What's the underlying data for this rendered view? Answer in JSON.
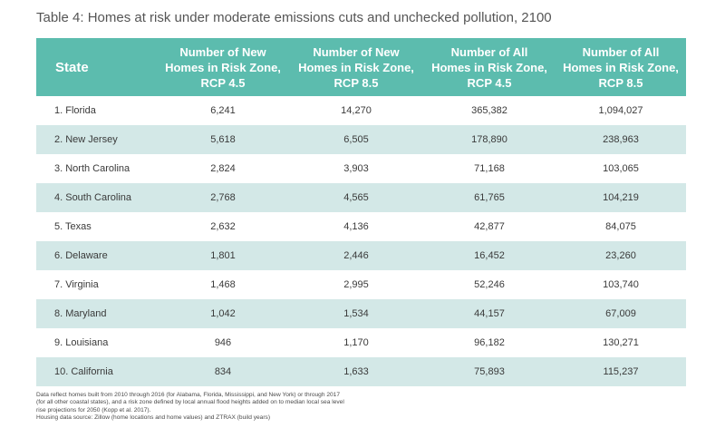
{
  "title": "Table 4: Homes at risk under moderate emissions cuts and unchecked pollution, 2100",
  "headers": [
    [
      "State"
    ],
    [
      "Number of New",
      "Homes in Risk Zone,",
      "RCP 4.5"
    ],
    [
      "Number of New",
      "Homes in Risk Zone,",
      "RCP 8.5"
    ],
    [
      "Number of All",
      "Homes in Risk Zone,",
      "RCP 4.5"
    ],
    [
      "Number of All",
      "Homes in Risk Zone,",
      "RCP 8.5"
    ]
  ],
  "rows": [
    [
      "1. Florida",
      "6,241",
      "14,270",
      "365,382",
      "1,094,027"
    ],
    [
      "2. New Jersey",
      "5,618",
      "6,505",
      "178,890",
      "238,963"
    ],
    [
      "3. North Carolina",
      "2,824",
      "3,903",
      "71,168",
      "103,065"
    ],
    [
      "4. South Carolina",
      "2,768",
      "4,565",
      "61,765",
      "104,219"
    ],
    [
      "5. Texas",
      "2,632",
      "4,136",
      "42,877",
      "84,075"
    ],
    [
      "6. Delaware",
      "1,801",
      "2,446",
      "16,452",
      "23,260"
    ],
    [
      "7. Virginia",
      "1,468",
      "2,995",
      "52,246",
      "103,740"
    ],
    [
      "8. Maryland",
      "1,042",
      "1,534",
      "44,157",
      "67,009"
    ],
    [
      "9. Louisiana",
      "946",
      "1,170",
      "96,182",
      "130,271"
    ],
    [
      "10. California",
      "834",
      "1,633",
      "75,893",
      "115,237"
    ]
  ],
  "notes": [
    "Data reflect homes built from 2010 through 2016 (for Alabama, Florida, Mississippi, and New York) or through 2017",
    "(for all other coastal states), and a risk zone defined by local annual flood heights added on to median local sea level",
    "rise projections for 2050 (Kopp et al. 2017).",
    "Housing data source: Zillow (home locations and home values) and ZTRAX (build years)"
  ],
  "colors": {
    "header_bg": "#5cbcae",
    "stripe_bg": "#d3e8e7"
  }
}
